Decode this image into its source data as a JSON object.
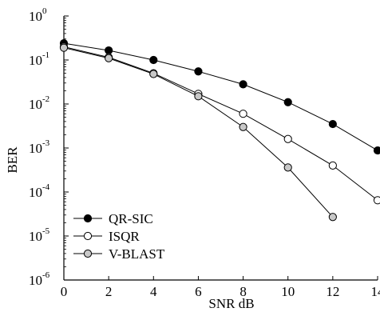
{
  "chart_data": {
    "type": "line",
    "xlabel": "SNR dB",
    "ylabel": "BER",
    "xlim": [
      0,
      14
    ],
    "ylim": [
      1e-06,
      1
    ],
    "y_scale": "log",
    "grid": false,
    "legend_position": "bottom-left",
    "x_ticks": [
      "0",
      "2",
      "4",
      "6",
      "8",
      "10",
      "12",
      "14"
    ],
    "y_ticks": [
      {
        "value": 1,
        "base": "10",
        "exp": "0"
      },
      {
        "value": 0.1,
        "base": "10",
        "exp": "-1"
      },
      {
        "value": 0.01,
        "base": "10",
        "exp": "-2"
      },
      {
        "value": 0.001,
        "base": "10",
        "exp": "-3"
      },
      {
        "value": 0.0001,
        "base": "10",
        "exp": "-4"
      },
      {
        "value": 1e-05,
        "base": "10",
        "exp": "-5"
      },
      {
        "value": 1e-06,
        "base": "10",
        "exp": "-6"
      }
    ],
    "series": [
      {
        "name": "QR-SIC",
        "marker_fill": "#000000",
        "x": [
          0,
          2,
          4,
          6,
          8,
          10,
          12,
          14
        ],
        "y": [
          0.24,
          0.165,
          0.1,
          0.055,
          0.028,
          0.011,
          0.0035,
          0.00088
        ]
      },
      {
        "name": "ISQR",
        "marker_fill": "#ffffff",
        "x": [
          0,
          2,
          4,
          6,
          8,
          10,
          12,
          14
        ],
        "y": [
          0.2,
          0.115,
          0.05,
          0.017,
          0.006,
          0.0016,
          0.0004,
          6.5e-05
        ]
      },
      {
        "name": "V-BLAST",
        "marker_fill": "#c8c8c8",
        "x": [
          0,
          2,
          4,
          6,
          8,
          10,
          12
        ],
        "y": [
          0.19,
          0.11,
          0.048,
          0.015,
          0.003,
          0.00036,
          2.7e-05
        ]
      }
    ]
  }
}
